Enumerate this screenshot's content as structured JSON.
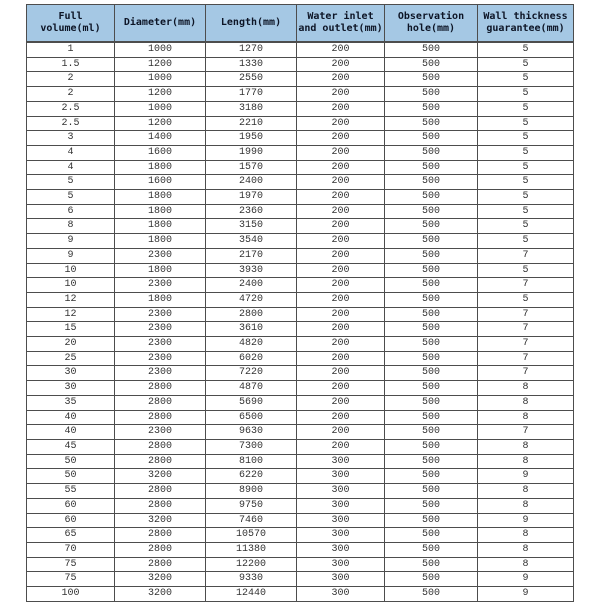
{
  "colors": {
    "header_bg": "#a5c8e4",
    "header_text": "#0d1526",
    "body_text": "#333333",
    "border": "#4d4d4d"
  },
  "table": {
    "headers": [
      {
        "label": "Full volume(ml)",
        "lines": [
          "Full",
          "volume(ml)"
        ]
      },
      {
        "label": "Diameter(mm)",
        "lines": [
          "Diameter(mm)"
        ]
      },
      {
        "label": "Length(mm)",
        "lines": [
          "Length(mm)"
        ]
      },
      {
        "label": "Water inlet and outlet(mm)",
        "lines": [
          "Water inlet",
          "and outlet(mm)"
        ]
      },
      {
        "label": "Observation hole(mm)",
        "lines": [
          "Observation",
          "hole(mm)"
        ]
      },
      {
        "label": "Wall thickness guarantee(mm)",
        "lines": [
          "Wall thickness",
          "guarantee(mm)"
        ]
      }
    ],
    "rows": [
      [
        "1",
        "1000",
        "1270",
        "200",
        "500",
        "5"
      ],
      [
        "1.5",
        "1200",
        "1330",
        "200",
        "500",
        "5"
      ],
      [
        "2",
        "1000",
        "2550",
        "200",
        "500",
        "5"
      ],
      [
        "2",
        "1200",
        "1770",
        "200",
        "500",
        "5"
      ],
      [
        "2.5",
        "1000",
        "3180",
        "200",
        "500",
        "5"
      ],
      [
        "2.5",
        "1200",
        "2210",
        "200",
        "500",
        "5"
      ],
      [
        "3",
        "1400",
        "1950",
        "200",
        "500",
        "5"
      ],
      [
        "4",
        "1600",
        "1990",
        "200",
        "500",
        "5"
      ],
      [
        "4",
        "1800",
        "1570",
        "200",
        "500",
        "5"
      ],
      [
        "5",
        "1600",
        "2400",
        "200",
        "500",
        "5"
      ],
      [
        "5",
        "1800",
        "1970",
        "200",
        "500",
        "5"
      ],
      [
        "6",
        "1800",
        "2360",
        "200",
        "500",
        "5"
      ],
      [
        "8",
        "1800",
        "3150",
        "200",
        "500",
        "5"
      ],
      [
        "9",
        "1800",
        "3540",
        "200",
        "500",
        "5"
      ],
      [
        "9",
        "2300",
        "2170",
        "200",
        "500",
        "7"
      ],
      [
        "10",
        "1800",
        "3930",
        "200",
        "500",
        "5"
      ],
      [
        "10",
        "2300",
        "2400",
        "200",
        "500",
        "7"
      ],
      [
        "12",
        "1800",
        "4720",
        "200",
        "500",
        "5"
      ],
      [
        "12",
        "2300",
        "2800",
        "200",
        "500",
        "7"
      ],
      [
        "15",
        "2300",
        "3610",
        "200",
        "500",
        "7"
      ],
      [
        "20",
        "2300",
        "4820",
        "200",
        "500",
        "7"
      ],
      [
        "25",
        "2300",
        "6020",
        "200",
        "500",
        "7"
      ],
      [
        "30",
        "2300",
        "7220",
        "200",
        "500",
        "7"
      ],
      [
        "30",
        "2800",
        "4870",
        "200",
        "500",
        "8"
      ],
      [
        "35",
        "2800",
        "5690",
        "200",
        "500",
        "8"
      ],
      [
        "40",
        "2800",
        "6500",
        "200",
        "500",
        "8"
      ],
      [
        "40",
        "2300",
        "9630",
        "200",
        "500",
        "7"
      ],
      [
        "45",
        "2800",
        "7300",
        "200",
        "500",
        "8"
      ],
      [
        "50",
        "2800",
        "8100",
        "300",
        "500",
        "8"
      ],
      [
        "50",
        "3200",
        "6220",
        "300",
        "500",
        "9"
      ],
      [
        "55",
        "2800",
        "8900",
        "300",
        "500",
        "8"
      ],
      [
        "60",
        "2800",
        "9750",
        "300",
        "500",
        "8"
      ],
      [
        "60",
        "3200",
        "7460",
        "300",
        "500",
        "9"
      ],
      [
        "65",
        "2800",
        "10570",
        "300",
        "500",
        "8"
      ],
      [
        "70",
        "2800",
        "11380",
        "300",
        "500",
        "8"
      ],
      [
        "75",
        "2800",
        "12200",
        "300",
        "500",
        "8"
      ],
      [
        "75",
        "3200",
        "9330",
        "300",
        "500",
        "9"
      ],
      [
        "100",
        "3200",
        "12440",
        "300",
        "500",
        "9"
      ]
    ]
  }
}
